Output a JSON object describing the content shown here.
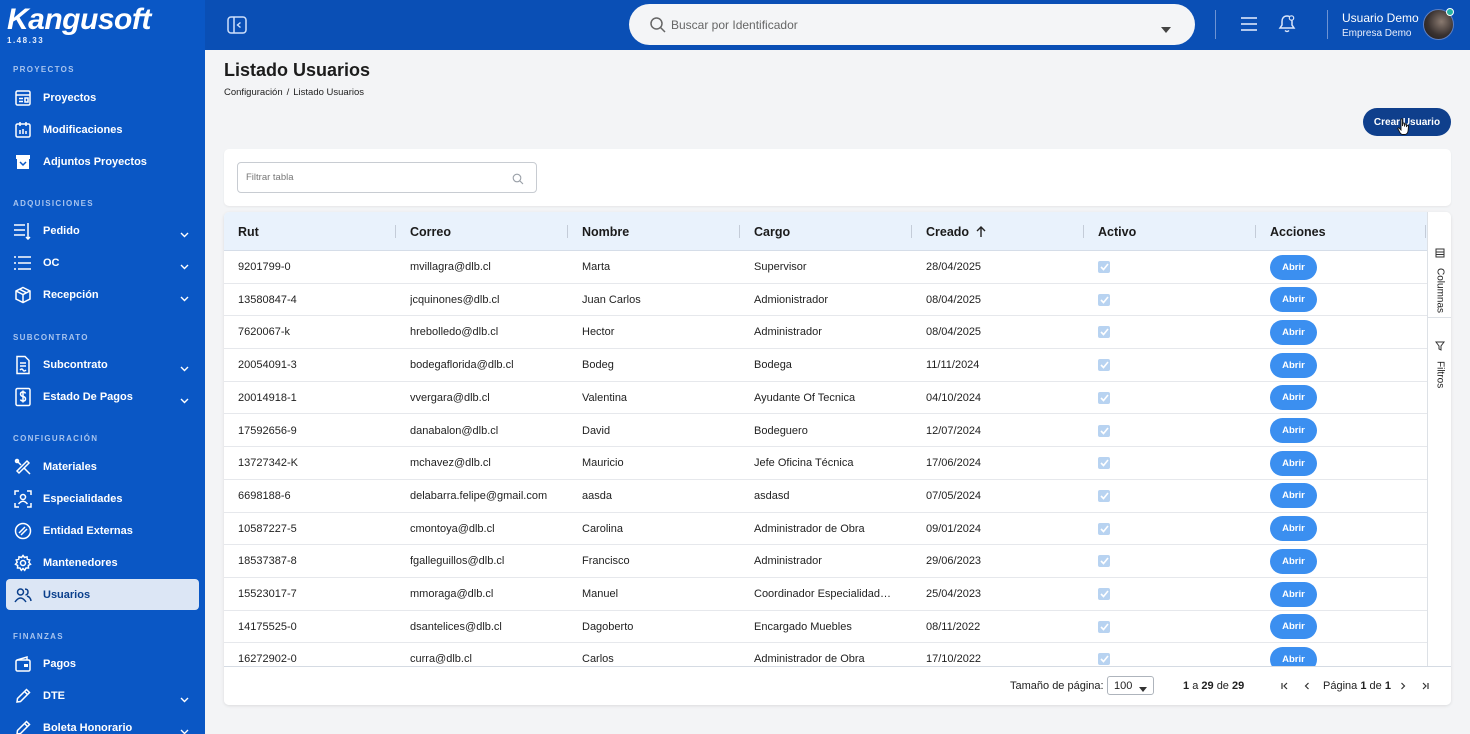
{
  "app": {
    "logo": "Kangusoft",
    "version": "1.48.33"
  },
  "sidebar": {
    "sections": [
      {
        "title": "PROYECTOS",
        "items": [
          {
            "label": "Proyectos",
            "icon": "projects-icon"
          },
          {
            "label": "Modificaciones",
            "icon": "modifications-icon"
          },
          {
            "label": "Adjuntos Proyectos",
            "icon": "archive-icon"
          }
        ]
      },
      {
        "title": "ADQUISICIONES",
        "items": [
          {
            "label": "Pedido",
            "icon": "order-list-icon",
            "expandable": true
          },
          {
            "label": "OC",
            "icon": "purchase-order-icon",
            "expandable": true
          },
          {
            "label": "Recepción",
            "icon": "box-icon",
            "expandable": true
          }
        ]
      },
      {
        "title": "SUBCONTRATO",
        "items": [
          {
            "label": "Subcontrato",
            "icon": "contract-icon",
            "expandable": true
          },
          {
            "label": "Estado De Pagos",
            "icon": "dollar-icon",
            "expandable": true
          }
        ]
      },
      {
        "title": "CONFIGURACIÓN",
        "items": [
          {
            "label": "Materiales",
            "icon": "tools-icon"
          },
          {
            "label": "Especialidades",
            "icon": "user-focus-icon"
          },
          {
            "label": "Entidad Externas",
            "icon": "link-icon"
          },
          {
            "label": "Mantenedores",
            "icon": "gear-icon"
          },
          {
            "label": "Usuarios",
            "icon": "users-icon",
            "active": true
          }
        ]
      },
      {
        "title": "FINANZAS",
        "items": [
          {
            "label": "Pagos",
            "icon": "wallet-icon"
          },
          {
            "label": "DTE",
            "icon": "pen-icon",
            "expandable": true
          },
          {
            "label": "Boleta Honorario",
            "icon": "pen-icon",
            "expandable": true
          }
        ]
      }
    ]
  },
  "topbar": {
    "search_placeholder": "Buscar por Identificador",
    "user_name": "Usuario Demo",
    "user_company": "Empresa Demo"
  },
  "page": {
    "title": "Listado Usuarios",
    "breadcrumb": [
      "Configuración",
      "Listado Usuarios"
    ],
    "create_button": "Crear Usuario",
    "filter_placeholder": "Filtrar tabla"
  },
  "table": {
    "columns": [
      "Rut",
      "Correo",
      "Nombre",
      "Cargo",
      "Creado",
      "Activo",
      "Acciones"
    ],
    "sorted_column": "Creado",
    "sort_direction": "asc",
    "action_label": "Abrir",
    "rows": [
      {
        "rut": "9201799-0",
        "correo": "mvillagra@dlb.cl",
        "nombre": "Marta",
        "cargo": "Supervisor",
        "creado": "28/04/2025",
        "activo": true
      },
      {
        "rut": "13580847-4",
        "correo": "jcquinones@dlb.cl",
        "nombre": "Juan Carlos",
        "cargo": "Admionistrador",
        "creado": "08/04/2025",
        "activo": true
      },
      {
        "rut": "7620067-k",
        "correo": "hrebolledo@dlb.cl",
        "nombre": "Hector",
        "cargo": "Administrador",
        "creado": "08/04/2025",
        "activo": true
      },
      {
        "rut": "20054091-3",
        "correo": "bodegaflorida@dlb.cl",
        "nombre": "Bodeg",
        "cargo": "Bodega",
        "creado": "11/11/2024",
        "activo": true
      },
      {
        "rut": "20014918-1",
        "correo": "vvergara@dlb.cl",
        "nombre": "Valentina",
        "cargo": "Ayudante Of Tecnica",
        "creado": "04/10/2024",
        "activo": true
      },
      {
        "rut": "17592656-9",
        "correo": "danabalon@dlb.cl",
        "nombre": "David",
        "cargo": "Bodeguero",
        "creado": "12/07/2024",
        "activo": true
      },
      {
        "rut": "13727342-K",
        "correo": "mchavez@dlb.cl",
        "nombre": "Mauricio",
        "cargo": "Jefe Oficina Técnica",
        "creado": "17/06/2024",
        "activo": true
      },
      {
        "rut": "6698188-6",
        "correo": "delabarra.felipe@gmail.com",
        "nombre": "aasda",
        "cargo": "asdasd",
        "creado": "07/05/2024",
        "activo": true
      },
      {
        "rut": "10587227-5",
        "correo": "cmontoya@dlb.cl",
        "nombre": "Carolina",
        "cargo": "Administrador de Obra",
        "creado": "09/01/2024",
        "activo": true
      },
      {
        "rut": "18537387-8",
        "correo": "fgalleguillos@dlb.cl",
        "nombre": "Francisco",
        "cargo": "Administrador",
        "creado": "29/06/2023",
        "activo": true
      },
      {
        "rut": "15523017-7",
        "correo": "mmoraga@dlb.cl",
        "nombre": "Manuel",
        "cargo": "Coordinador Especialidad…",
        "creado": "25/04/2023",
        "activo": true
      },
      {
        "rut": "14175525-0",
        "correo": "dsantelices@dlb.cl",
        "nombre": "Dagoberto",
        "cargo": "Encargado Muebles",
        "creado": "08/11/2022",
        "activo": true
      },
      {
        "rut": "16272902-0",
        "correo": "curra@dlb.cl",
        "nombre": "Carlos",
        "cargo": "Administrador de Obra",
        "creado": "17/10/2022",
        "activo": true
      }
    ]
  },
  "side_tools": {
    "columns_label": "Columnas",
    "filters_label": "Filtros"
  },
  "pager": {
    "page_size_label": "Tamaño de página:",
    "page_size": "100",
    "range_from": "1",
    "range_to": "29",
    "range_total": "29",
    "range_sep": "a",
    "of_label": "de",
    "page_label": "Página",
    "current_page": "1",
    "total_pages": "1"
  }
}
